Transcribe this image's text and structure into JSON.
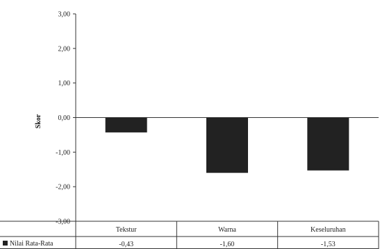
{
  "chart_data": {
    "type": "bar",
    "title": "",
    "xlabel": "",
    "ylabel": "Skor",
    "categories": [
      "Tekstur",
      "Warna",
      "Keseluruhan"
    ],
    "series": [
      {
        "name": "Nilai Rata-Rata",
        "values": [
          -0.43,
          -1.6,
          -1.53
        ],
        "labels": [
          "-0,43",
          "-1,60",
          "-1,53"
        ],
        "color": "#222222"
      }
    ],
    "ylim": [
      -3,
      3
    ],
    "yticks": [
      3,
      2,
      1,
      0,
      -1,
      -2,
      -3
    ],
    "ytick_labels": [
      "3,00",
      "2,00",
      "1,00",
      "0,00",
      "-1,00",
      "-2,00",
      "-3,00"
    ],
    "grid": false,
    "legend": "data-table-left"
  }
}
